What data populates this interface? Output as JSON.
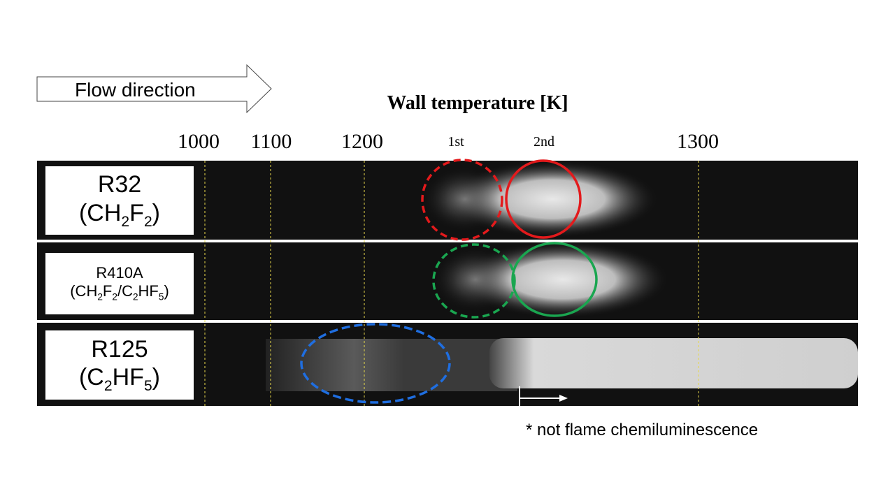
{
  "flow_label": "Flow direction",
  "title": "Wall temperature [K]",
  "temperature_labels": [
    "1000",
    "1100",
    "1200",
    "1st",
    "2nd",
    "1300"
  ],
  "rows": [
    {
      "name": "R32",
      "formula": [
        {
          "text": "(CH"
        },
        {
          "sub": "2"
        },
        {
          "text": "F"
        },
        {
          "sub": "2"
        },
        {
          "text": ")"
        }
      ]
    },
    {
      "name": "R410A",
      "formula": [
        {
          "text": "(CH"
        },
        {
          "sub": "2"
        },
        {
          "text": "F"
        },
        {
          "sub": "2"
        },
        {
          "text": "/C"
        },
        {
          "sub": "2"
        },
        {
          "text": "HF"
        },
        {
          "sub": "5"
        },
        {
          "text": ")"
        }
      ]
    },
    {
      "name": "R125",
      "formula": [
        {
          "text": "(C"
        },
        {
          "sub": "2"
        },
        {
          "text": "HF"
        },
        {
          "sub": "5"
        },
        {
          "text": ")"
        }
      ]
    }
  ],
  "note": "* not  flame chemiluminescence"
}
